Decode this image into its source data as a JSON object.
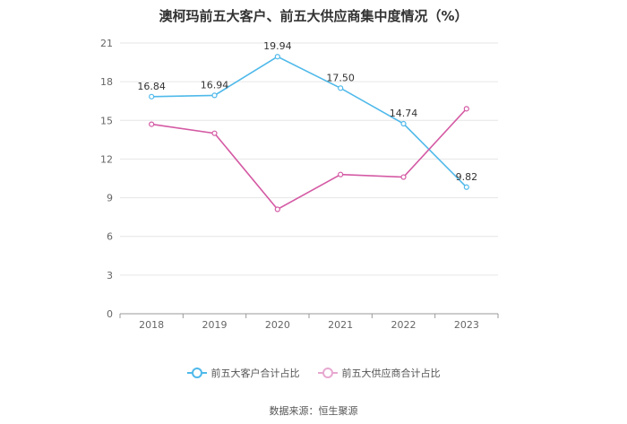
{
  "chart_data": {
    "type": "line",
    "title": "澳柯玛前五大客户、前五大供应商集中度情况（%）",
    "categories": [
      "2018",
      "2019",
      "2020",
      "2021",
      "2022",
      "2023"
    ],
    "yticks": [
      "0",
      "3",
      "6",
      "9",
      "12",
      "15",
      "18",
      "21"
    ],
    "ylim": [
      0,
      21
    ],
    "series": [
      {
        "name": "前五大客户合计占比",
        "color": "#4fb9ea",
        "values": [
          16.84,
          16.94,
          19.94,
          17.5,
          14.74,
          9.82
        ],
        "labels": [
          "16.84",
          "16.94",
          "19.94",
          "17.50",
          "14.74",
          "9.82"
        ]
      },
      {
        "name": "前五大供应商合计占比",
        "color": "#d45aa4",
        "values": [
          14.7,
          14.0,
          8.1,
          10.8,
          10.6,
          15.9
        ]
      }
    ],
    "source": "数据来源：恒生聚源"
  }
}
